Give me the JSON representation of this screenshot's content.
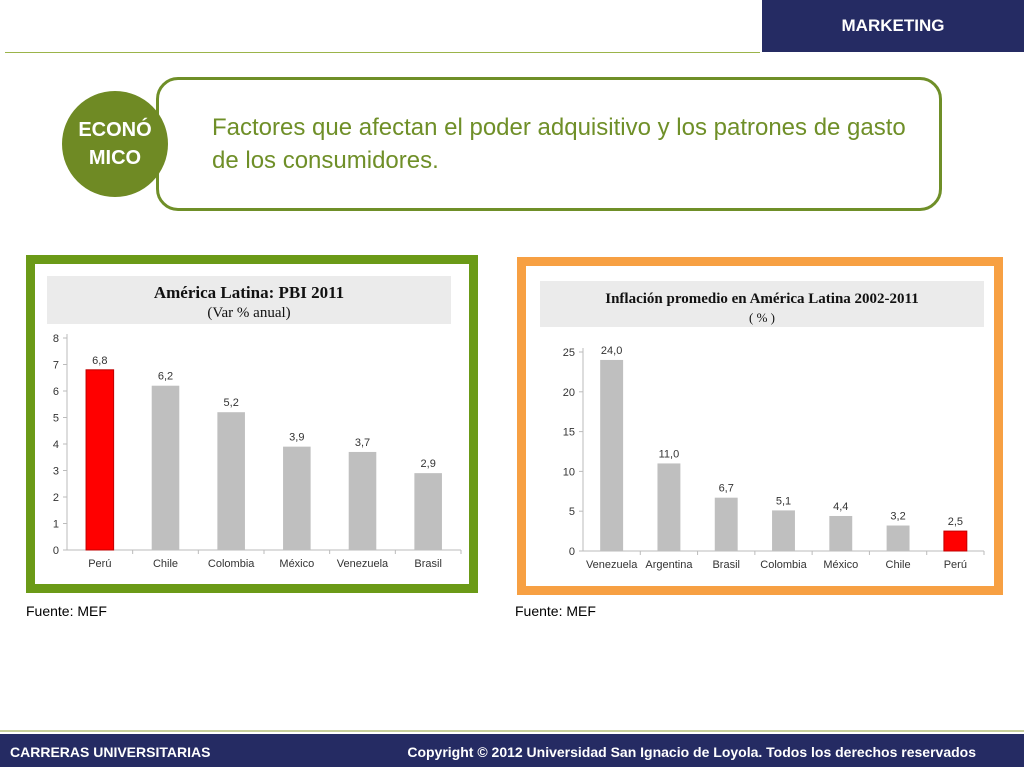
{
  "header": {
    "badge": "MARKETING"
  },
  "topic": {
    "circle_label": "ECONÓ MICO",
    "text": "Factores que afectan el poder adquisitivo y los patrones de gasto de los consumidores."
  },
  "colors": {
    "navy": "#252b63",
    "green": "#6f8f28",
    "orange": "#f7a043",
    "bar_gray": "#bfbfbf",
    "highlight": "#ff0000"
  },
  "sources": {
    "left": "Fuente: MEF",
    "right": "Fuente: MEF"
  },
  "footer": {
    "left": "CARRERAS UNIVERSITARIAS",
    "right": "Copyright © 2012 Universidad San Ignacio de Loyola. Todos los derechos reservados"
  },
  "chart_data": [
    {
      "type": "bar",
      "title": "América Latina: PBI 2011",
      "subtitle": "(Var % anual)",
      "categories": [
        "Perú",
        "Chile",
        "Colombia",
        "México",
        "Venezuela",
        "Brasil"
      ],
      "values": [
        6.8,
        6.2,
        5.2,
        3.9,
        3.7,
        2.9
      ],
      "value_labels": [
        "6,8",
        "6,2",
        "5,2",
        "3,9",
        "3,7",
        "2,9"
      ],
      "highlight": "Perú",
      "ylim": [
        0,
        8
      ],
      "yticks": [
        "0",
        "1",
        "2",
        "3",
        "4",
        "5",
        "6",
        "7",
        "8"
      ],
      "grid": false
    },
    {
      "type": "bar",
      "title": "Inflación promedio en América Latina 2002-2011",
      "subtitle": "( % )",
      "categories": [
        "Venezuela",
        "Argentina",
        "Brasil",
        "Colombia",
        "México",
        "Chile",
        "Perú"
      ],
      "values": [
        24.0,
        11.0,
        6.7,
        5.1,
        4.4,
        3.2,
        2.5
      ],
      "value_labels": [
        "24,0",
        "11,0",
        "6,7",
        "5,1",
        "4,4",
        "3,2",
        "2,5"
      ],
      "highlight": "Perú",
      "ylim": [
        0,
        25
      ],
      "yticks": [
        "0",
        "5",
        "10",
        "15",
        "20",
        "25"
      ],
      "grid": false
    }
  ]
}
